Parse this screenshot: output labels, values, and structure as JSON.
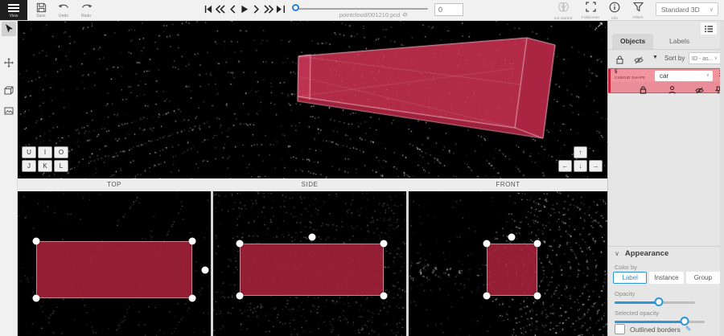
{
  "topbar": {
    "menu_label": "View",
    "save_label": "Save",
    "undo_label": "Undo",
    "redo_label": "Redo",
    "filename": "pointcloud/001210.pcd",
    "frame_value": "0",
    "status_label": "not started",
    "fullscreen_label": "Fullscreen",
    "info_label": "Info",
    "filters_label": "Filters",
    "mode_value": "Standard 3D"
  },
  "main_view": {
    "keypad": [
      "U",
      "I",
      "O",
      "J",
      "K",
      "L"
    ],
    "arrows": {
      "up": "↑",
      "left": "←",
      "down": "↓",
      "right": "→"
    },
    "expand_glyph": "↗"
  },
  "view_labels": {
    "top": "TOP",
    "side": "SIDE",
    "front": "FRONT"
  },
  "right_panel": {
    "tabs": [
      {
        "label": "Objects"
      },
      {
        "label": "Labels"
      }
    ],
    "sort_by_label": "Sort by",
    "sort_value": "ID - as...",
    "object": {
      "id": "5",
      "shape": "CUBOID SHAPE",
      "class_value": "car",
      "menu_glyph": "⋮"
    },
    "appearance": {
      "title": "Appearance",
      "collapse_glyph": "∨",
      "color_by_label": "Color by",
      "color_buttons": [
        "Label",
        "Instance",
        "Group"
      ],
      "opacity_label": "Opacity",
      "opacity_percent": 55,
      "selected_opacity_label": "Selected opacity",
      "selected_opacity_percent": 78,
      "outlined_borders_label": "Outlined borders",
      "pencil_glyph": "✎"
    }
  },
  "colors": {
    "accent_blue": "#2b95d6",
    "cuboid_fill": "#b12b46",
    "selection_pink": "#f2949e",
    "selection_border": "#e24d60"
  }
}
